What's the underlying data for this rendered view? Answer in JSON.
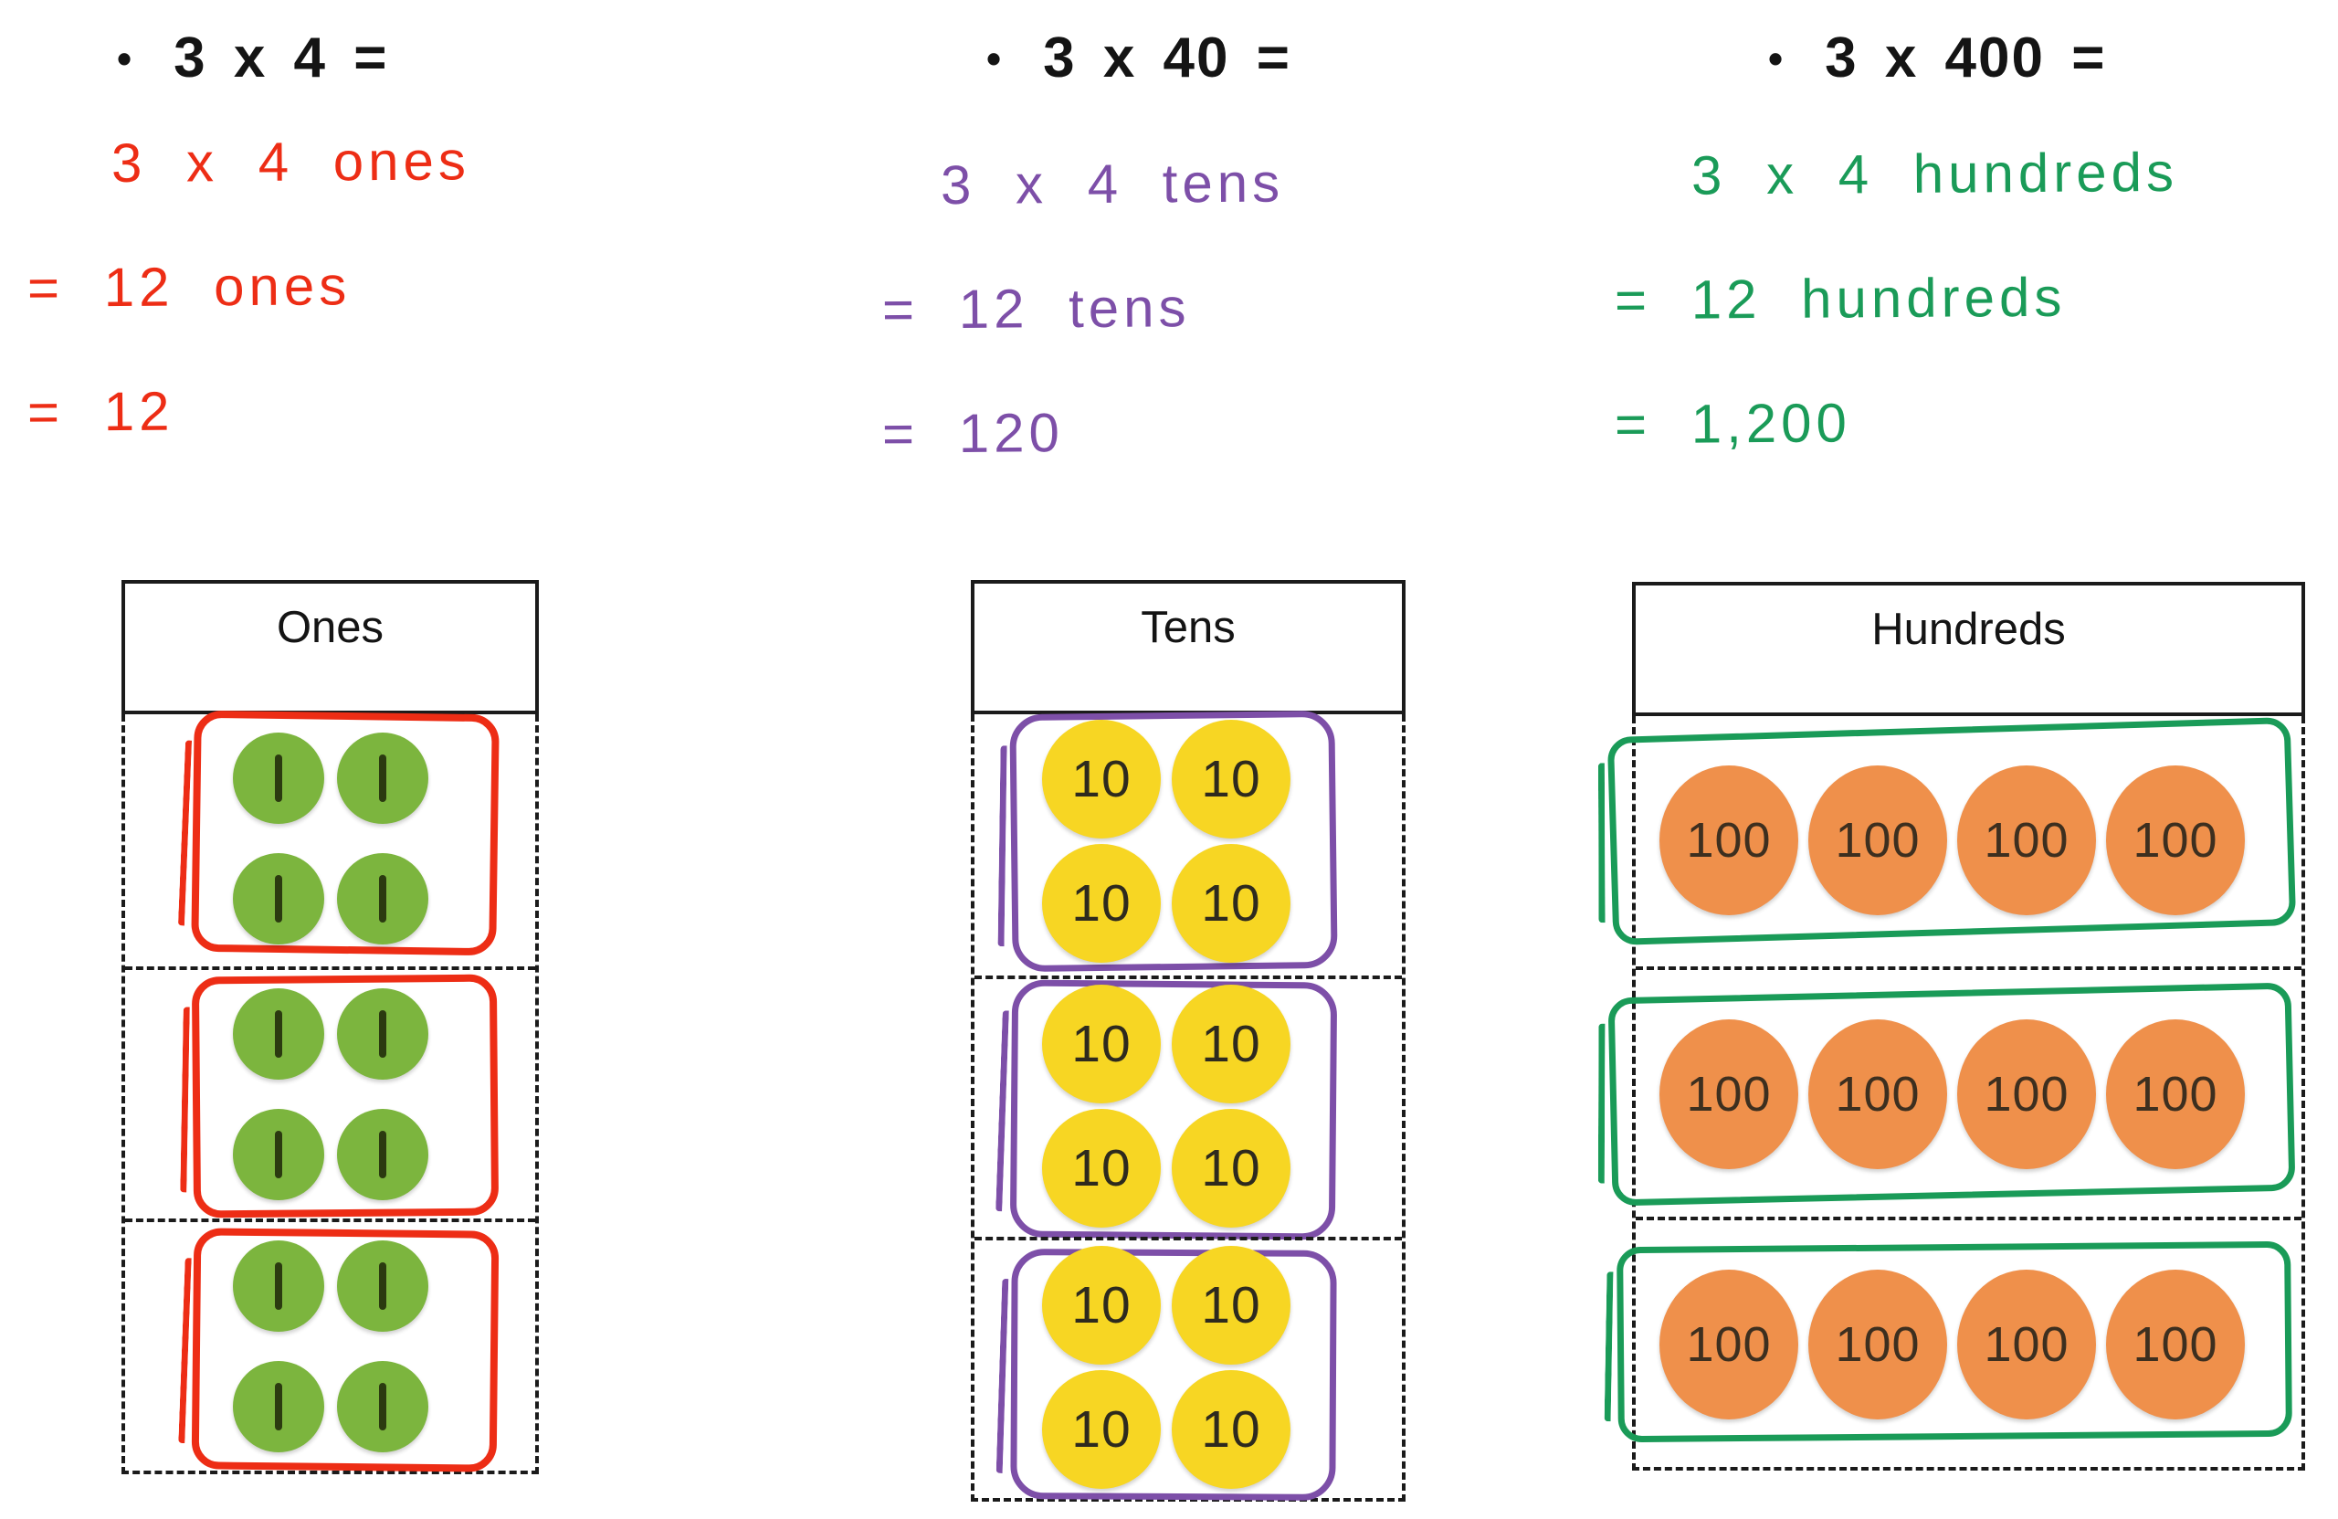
{
  "ink_colors": {
    "ones": "#ed2d15",
    "tens": "#7d4fa8",
    "hundreds": "#1a9b58"
  },
  "columns": [
    {
      "id": "ones",
      "equation": {
        "bullet": "•",
        "text": "3 x 4 ="
      },
      "work_lines": [
        "3 x 4 ones",
        "= 12 ones",
        "= 12"
      ],
      "chart": {
        "header": "Ones",
        "groups": 3,
        "discs_per_group": 4,
        "arrangement": "grid-2x2",
        "disc_label": "1",
        "disc_glyph": "vertical-bar",
        "disc_fill": "#7cb53e",
        "disc_text_color": "#2b3a10",
        "loop_color": "#ed2d15"
      }
    },
    {
      "id": "tens",
      "equation": {
        "bullet": "•",
        "text": "3 x 40 ="
      },
      "work_lines": [
        "3 x 4 tens",
        "= 12 tens",
        "= 120"
      ],
      "chart": {
        "header": "Tens",
        "groups": 3,
        "discs_per_group": 4,
        "arrangement": "grid-2x2",
        "disc_label": "10",
        "disc_glyph": "text",
        "disc_fill": "#f7d623",
        "disc_text_color": "#2e2a1e",
        "loop_color": "#7d4fa8"
      }
    },
    {
      "id": "hundreds",
      "equation": {
        "bullet": "•",
        "text": "3 x 400 ="
      },
      "work_lines": [
        "3 x 4 hundreds",
        "= 12 hundreds",
        "= 1,200"
      ],
      "chart": {
        "header": "Hundreds",
        "groups": 3,
        "discs_per_group": 4,
        "arrangement": "row-4",
        "disc_label": "100",
        "disc_glyph": "text",
        "disc_fill": "#ef904b",
        "disc_text_color": "#3d2f1f",
        "loop_color": "#1a9b58"
      }
    }
  ]
}
